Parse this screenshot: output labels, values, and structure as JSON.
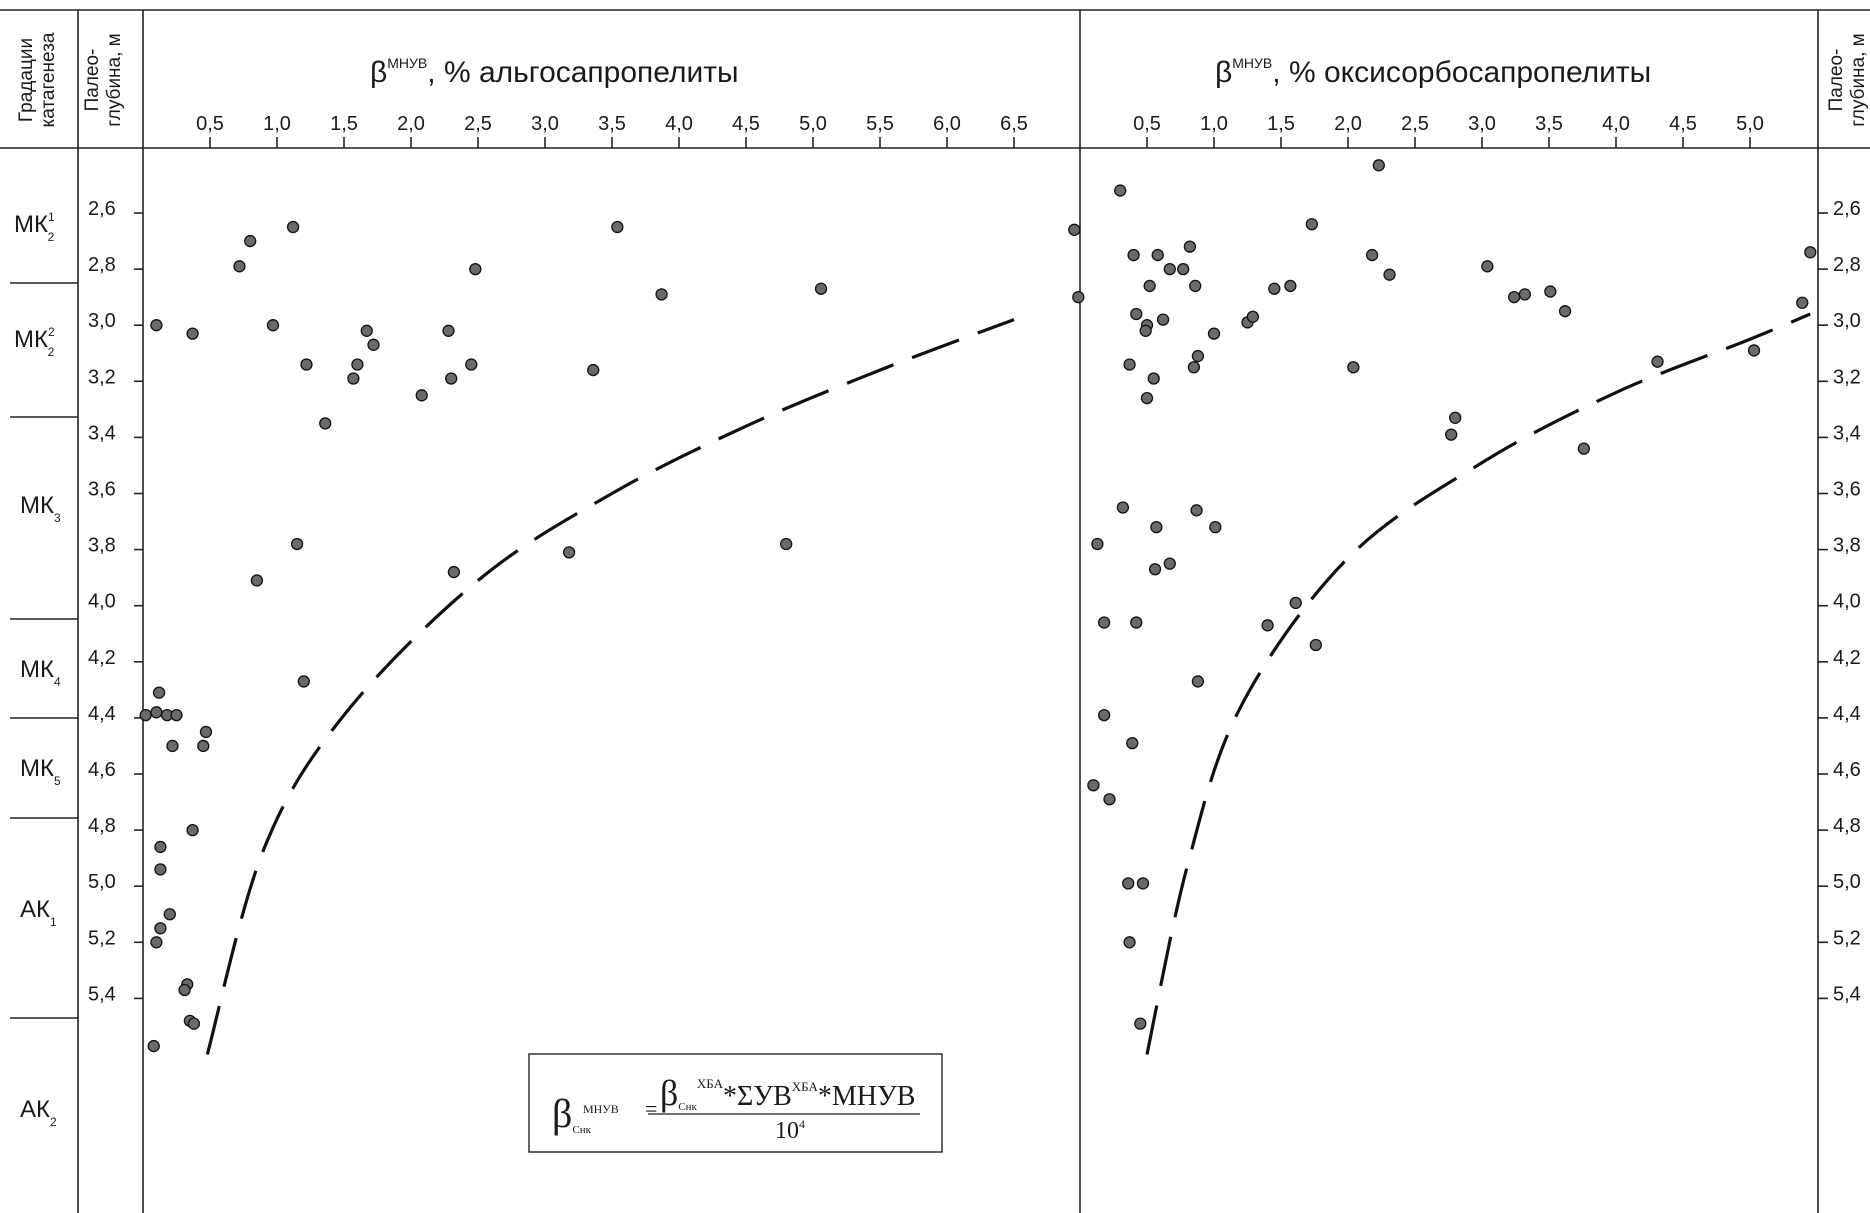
{
  "header": {
    "grade_col_label_1": "Градации",
    "grade_col_label_2": "катагенеза",
    "depth_col_label_1": "Палео-",
    "depth_col_label_2": "глубина, м",
    "right_depth_label_1": "Палео-",
    "right_depth_label_2": "глубина, м"
  },
  "grades": [
    {
      "main": "МК",
      "sup": "1",
      "sub": "2"
    },
    {
      "main": "МК",
      "sup": "2",
      "sub": "2"
    },
    {
      "main": "МК",
      "sup": "",
      "sub": "3"
    },
    {
      "main": "МК",
      "sup": "",
      "sub": "4"
    },
    {
      "main": "МК",
      "sup": "",
      "sub": "5"
    },
    {
      "main": "АК",
      "sup": "",
      "sub": "1"
    },
    {
      "main": "АК",
      "sup": "",
      "sub": "2"
    }
  ],
  "depth_ticks": [
    "2,6",
    "2,8",
    "3,0",
    "3,2",
    "3,4",
    "3,6",
    "3,8",
    "4,0",
    "4,2",
    "4,4",
    "4,6",
    "4,8",
    "5,0",
    "5,2",
    "5,4"
  ],
  "formula": {
    "beta": "β",
    "lhs_sub": "Снк",
    "lhs_sup": "МНУВ",
    "eq": "=",
    "num_beta": "β",
    "num_sub": "Снк",
    "num_sup1": "ХБА",
    "num_mid": "*ΣУВ",
    "num_sup2": "ХБА",
    "num_end": "*МНУВ",
    "den": "10",
    "den_sup": "4"
  },
  "chart_data": [
    {
      "type": "scatter",
      "title_prefix": "β",
      "title_sup": "МНУВ",
      "title": ", % альгосапропелиты",
      "x_ticks": [
        "0,5",
        "1,0",
        "1,5",
        "2,0",
        "2,5",
        "3,0",
        "3,5",
        "4,0",
        "4,5",
        "5,0",
        "5,5",
        "6,0",
        "6,5"
      ],
      "xlim": [
        0,
        7.0
      ],
      "ylim": [
        2.42,
        5.6
      ],
      "y_inverted": true,
      "points": [
        [
          0.1,
          3.0
        ],
        [
          0.37,
          3.03
        ],
        [
          0.72,
          2.79
        ],
        [
          0.8,
          2.7
        ],
        [
          1.12,
          2.65
        ],
        [
          0.97,
          3.0
        ],
        [
          1.22,
          3.14
        ],
        [
          1.36,
          3.35
        ],
        [
          1.57,
          3.19
        ],
        [
          1.6,
          3.14
        ],
        [
          1.67,
          3.02
        ],
        [
          1.72,
          3.07
        ],
        [
          2.08,
          3.25
        ],
        [
          2.28,
          3.02
        ],
        [
          2.3,
          3.19
        ],
        [
          2.45,
          3.14
        ],
        [
          2.48,
          2.8
        ],
        [
          3.36,
          3.16
        ],
        [
          3.54,
          2.65
        ],
        [
          3.87,
          2.89
        ],
        [
          5.06,
          2.87
        ],
        [
          1.15,
          3.78
        ],
        [
          0.85,
          3.91
        ],
        [
          2.32,
          3.88
        ],
        [
          3.18,
          3.81
        ],
        [
          4.8,
          3.78
        ],
        [
          1.2,
          4.27
        ],
        [
          0.12,
          4.31
        ],
        [
          0.02,
          4.39
        ],
        [
          0.1,
          4.38
        ],
        [
          0.18,
          4.39
        ],
        [
          0.25,
          4.39
        ],
        [
          0.22,
          4.5
        ],
        [
          0.45,
          4.5
        ],
        [
          0.47,
          4.45
        ],
        [
          0.37,
          4.8
        ],
        [
          0.13,
          4.86
        ],
        [
          0.13,
          4.94
        ],
        [
          0.2,
          5.1
        ],
        [
          0.13,
          5.15
        ],
        [
          0.1,
          5.2
        ],
        [
          0.33,
          5.35
        ],
        [
          0.31,
          5.37
        ],
        [
          0.35,
          5.48
        ],
        [
          0.38,
          5.49
        ],
        [
          0.08,
          5.57
        ],
        [
          6.95,
          2.66
        ],
        [
          6.98,
          2.9
        ]
      ],
      "boundary": {
        "style": "dashed",
        "x": [
          0.48,
          0.9,
          1.5,
          2.5,
          3.5,
          4.5,
          5.5,
          6.5
        ],
        "y": [
          5.6,
          4.87,
          4.39,
          3.91,
          3.6,
          3.36,
          3.16,
          2.98
        ]
      }
    },
    {
      "type": "scatter",
      "title_prefix": "β",
      "title_sup": "МНУВ",
      "title": ", % оксисорбосапропелиты",
      "x_ticks": [
        "0,5",
        "1,0",
        "1,5",
        "2,0",
        "2,5",
        "3,0",
        "3,5",
        "4,0",
        "4,5",
        "5,0"
      ],
      "xlim": [
        0,
        5.45
      ],
      "ylim": [
        2.42,
        5.6
      ],
      "y_inverted": true,
      "points": [
        [
          2.23,
          2.43
        ],
        [
          0.3,
          2.52
        ],
        [
          0.4,
          2.75
        ],
        [
          0.58,
          2.75
        ],
        [
          0.82,
          2.72
        ],
        [
          0.67,
          2.8
        ],
        [
          0.77,
          2.8
        ],
        [
          0.52,
          2.86
        ],
        [
          0.86,
          2.86
        ],
        [
          0.42,
          2.96
        ],
        [
          0.5,
          3.0
        ],
        [
          0.62,
          2.98
        ],
        [
          0.49,
          3.02
        ],
        [
          1.0,
          3.03
        ],
        [
          1.25,
          2.99
        ],
        [
          1.29,
          2.97
        ],
        [
          1.45,
          2.87
        ],
        [
          1.57,
          2.86
        ],
        [
          1.73,
          2.64
        ],
        [
          2.18,
          2.75
        ],
        [
          2.31,
          2.82
        ],
        [
          3.04,
          2.79
        ],
        [
          3.24,
          2.9
        ],
        [
          3.32,
          2.89
        ],
        [
          3.51,
          2.88
        ],
        [
          3.62,
          2.95
        ],
        [
          0.37,
          3.14
        ],
        [
          0.55,
          3.19
        ],
        [
          0.5,
          3.26
        ],
        [
          0.85,
          3.15
        ],
        [
          0.88,
          3.11
        ],
        [
          2.04,
          3.15
        ],
        [
          2.77,
          3.39
        ],
        [
          2.8,
          3.33
        ],
        [
          3.76,
          3.44
        ],
        [
          4.31,
          3.13
        ],
        [
          5.03,
          3.09
        ],
        [
          5.39,
          2.92
        ],
        [
          5.45,
          2.74
        ],
        [
          0.32,
          3.65
        ],
        [
          0.87,
          3.66
        ],
        [
          0.57,
          3.72
        ],
        [
          1.01,
          3.72
        ],
        [
          0.13,
          3.78
        ],
        [
          0.67,
          3.85
        ],
        [
          0.56,
          3.87
        ],
        [
          1.61,
          3.99
        ],
        [
          0.18,
          4.06
        ],
        [
          0.42,
          4.06
        ],
        [
          1.4,
          4.07
        ],
        [
          1.76,
          4.14
        ],
        [
          0.88,
          4.27
        ],
        [
          0.18,
          4.39
        ],
        [
          0.39,
          4.49
        ],
        [
          0.1,
          4.64
        ],
        [
          0.22,
          4.69
        ],
        [
          0.36,
          4.99
        ],
        [
          0.47,
          4.99
        ],
        [
          0.37,
          5.2
        ],
        [
          0.45,
          5.49
        ]
      ],
      "boundary": {
        "style": "dashed",
        "x": [
          0.5,
          0.8,
          1.2,
          2.0,
          3.0,
          4.0,
          5.0,
          5.45
        ],
        "y": [
          5.6,
          4.93,
          4.36,
          3.83,
          3.49,
          3.24,
          3.05,
          2.96
        ]
      }
    }
  ]
}
